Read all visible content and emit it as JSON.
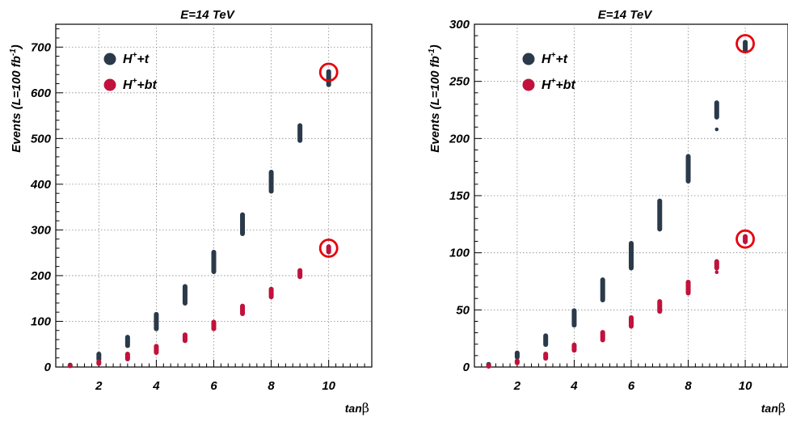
{
  "chart_data": [
    {
      "type": "scatter",
      "title": "E=14 TeV",
      "ylabel": "Events (L=100 fb",
      "ylabel_sup": "-1",
      "ylabel_end": ")",
      "xlabel_pre": "tan",
      "xlabel_greek": "β",
      "xlim": [
        0.5,
        11.5
      ],
      "ylim": [
        0,
        750
      ],
      "xticks": [
        2,
        4,
        6,
        8,
        10
      ],
      "xtick_labels": [
        "2",
        "4",
        "6",
        "8",
        "10"
      ],
      "yticks": [
        0,
        100,
        200,
        300,
        400,
        500,
        600,
        700
      ],
      "ytick_labels": [
        "0",
        "100",
        "200",
        "300",
        "400",
        "500",
        "600",
        "700"
      ],
      "grid": true,
      "legend_position": "top-left",
      "series": [
        {
          "name": "H+t",
          "label_main": "H",
          "label_sup": "+",
          "label_suffix": "+t",
          "color": "#2b3a4a",
          "ranges": [
            {
              "x": 1,
              "ymin": 2,
              "ymax": 6
            },
            {
              "x": 2,
              "ymin": 15,
              "ymax": 30
            },
            {
              "x": 3,
              "ymin": 45,
              "ymax": 67
            },
            {
              "x": 4,
              "ymin": 82,
              "ymax": 117
            },
            {
              "x": 5,
              "ymin": 138,
              "ymax": 178
            },
            {
              "x": 6,
              "ymin": 207,
              "ymax": 253
            },
            {
              "x": 7,
              "ymin": 290,
              "ymax": 335
            },
            {
              "x": 8,
              "ymin": 383,
              "ymax": 428
            },
            {
              "x": 9,
              "ymin": 494,
              "ymax": 530
            },
            {
              "x": 10,
              "ymin": 616,
              "ymax": 648
            }
          ]
        },
        {
          "name": "H+bt",
          "label_main": "H",
          "label_sup": "+",
          "label_suffix": "+bt",
          "color": "#c0123c",
          "ranges": [
            {
              "x": 1,
              "ymin": 1,
              "ymax": 4
            },
            {
              "x": 2,
              "ymin": 6,
              "ymax": 13
            },
            {
              "x": 3,
              "ymin": 16,
              "ymax": 30
            },
            {
              "x": 4,
              "ymin": 30,
              "ymax": 47
            },
            {
              "x": 5,
              "ymin": 56,
              "ymax": 72
            },
            {
              "x": 6,
              "ymin": 82,
              "ymax": 100
            },
            {
              "x": 7,
              "ymin": 115,
              "ymax": 135
            },
            {
              "x": 8,
              "ymin": 152,
              "ymax": 172
            },
            {
              "x": 9,
              "ymin": 196,
              "ymax": 213
            },
            {
              "x": 10,
              "ymin": 250,
              "ymax": 265
            }
          ]
        }
      ],
      "annotations": [
        {
          "type": "circle",
          "x": 10,
          "y": 645
        },
        {
          "type": "circle",
          "x": 10,
          "y": 260
        }
      ]
    },
    {
      "type": "scatter",
      "title": "E=14 TeV",
      "ylabel": "Events (L=100 fb",
      "ylabel_sup": "-1",
      "ylabel_end": ")",
      "xlabel_pre": "tan",
      "xlabel_greek": "β",
      "xlim": [
        0.5,
        11.5
      ],
      "ylim": [
        0,
        300
      ],
      "xticks": [
        2,
        4,
        6,
        8,
        10
      ],
      "xtick_labels": [
        "2",
        "4",
        "6",
        "8",
        "10"
      ],
      "yticks": [
        0,
        50,
        100,
        150,
        200,
        250,
        300
      ],
      "ytick_labels": [
        "0",
        "50",
        "100",
        "150",
        "200",
        "250",
        "300"
      ],
      "grid": true,
      "legend_position": "top-left",
      "series": [
        {
          "name": "H+t",
          "label_main": "H",
          "label_sup": "+",
          "label_suffix": "+t",
          "color": "#2b3a4a",
          "ranges": [
            {
              "x": 1,
              "ymin": 1,
              "ymax": 3
            },
            {
              "x": 2,
              "ymin": 8,
              "ymax": 13
            },
            {
              "x": 3,
              "ymin": 19,
              "ymax": 28
            },
            {
              "x": 4,
              "ymin": 36,
              "ymax": 50
            },
            {
              "x": 5,
              "ymin": 58,
              "ymax": 77
            },
            {
              "x": 6,
              "ymin": 86,
              "ymax": 109
            },
            {
              "x": 7,
              "ymin": 120,
              "ymax": 146
            },
            {
              "x": 8,
              "ymin": 162,
              "ymax": 185
            },
            {
              "x": 9,
              "ymin": 218,
              "ymax": 232
            },
            {
              "x": 10,
              "ymin": 276,
              "ymax": 285
            }
          ],
          "extra_points": [
            {
              "x": 9,
              "y": 208
            }
          ]
        },
        {
          "name": "H+bt",
          "label_main": "H",
          "label_sup": "+",
          "label_suffix": "+bt",
          "color": "#c0123c",
          "ranges": [
            {
              "x": 1,
              "ymin": 0,
              "ymax": 2
            },
            {
              "x": 2,
              "ymin": 3,
              "ymax": 6
            },
            {
              "x": 3,
              "ymin": 7,
              "ymax": 12
            },
            {
              "x": 4,
              "ymin": 14,
              "ymax": 20
            },
            {
              "x": 5,
              "ymin": 23,
              "ymax": 31
            },
            {
              "x": 6,
              "ymin": 35,
              "ymax": 44
            },
            {
              "x": 7,
              "ymin": 48,
              "ymax": 58
            },
            {
              "x": 8,
              "ymin": 64,
              "ymax": 75
            },
            {
              "x": 9,
              "ymin": 86,
              "ymax": 93
            },
            {
              "x": 10,
              "ymin": 109,
              "ymax": 115
            }
          ],
          "extra_points": [
            {
              "x": 9,
              "y": 83
            }
          ]
        }
      ],
      "annotations": [
        {
          "type": "circle",
          "x": 10,
          "y": 283
        },
        {
          "type": "circle",
          "x": 10,
          "y": 112
        }
      ]
    }
  ]
}
